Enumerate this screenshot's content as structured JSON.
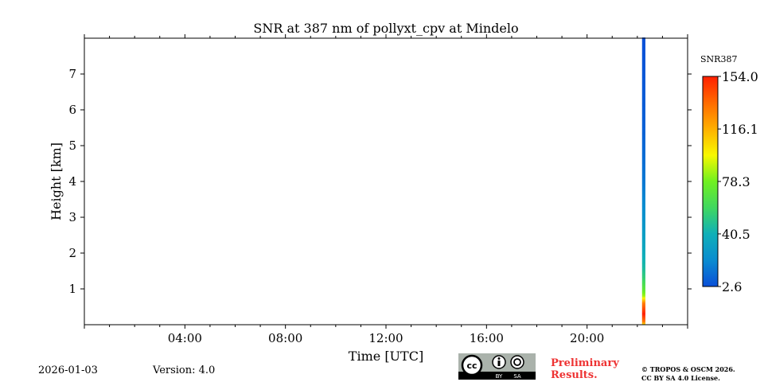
{
  "chart_data": {
    "type": "heatmap",
    "title": "SNR at 387 nm of pollyxt_cpv at Mindelo",
    "xlabel": "Time [UTC]",
    "ylabel": "Height [km]",
    "xlim_hours": [
      0,
      24
    ],
    "ylim_km": [
      0,
      8
    ],
    "xticks": [
      {
        "h": 4,
        "label": "04:00"
      },
      {
        "h": 8,
        "label": "08:00"
      },
      {
        "h": 12,
        "label": "12:00"
      },
      {
        "h": 16,
        "label": "16:00"
      },
      {
        "h": 20,
        "label": "20:00"
      }
    ],
    "yticks": [
      {
        "v": 1,
        "label": "1"
      },
      {
        "v": 2,
        "label": "2"
      },
      {
        "v": 3,
        "label": "3"
      },
      {
        "v": 4,
        "label": "4"
      },
      {
        "v": 5,
        "label": "5"
      },
      {
        "v": 6,
        "label": "6"
      },
      {
        "v": 7,
        "label": "7"
      }
    ],
    "colorbar": {
      "label": "SNR387",
      "range": [
        2.6,
        154.0
      ],
      "ticks": [
        {
          "v": 2.6,
          "label": "2.6"
        },
        {
          "v": 40.5,
          "label": "40.5"
        },
        {
          "v": 78.3,
          "label": "78.3"
        },
        {
          "v": 116.1,
          "label": "116.1"
        },
        {
          "v": 154.0,
          "label": "154.0"
        }
      ],
      "colors": [
        "#0a4fd8",
        "#0a8cd0",
        "#10b0b8",
        "#40d860",
        "#70f020",
        "#f8f800",
        "#ffb000",
        "#ff6a00",
        "#ff2000"
      ]
    },
    "profile": {
      "time_start_h": 22.19,
      "time_end_h": 22.32,
      "points": [
        {
          "h": 0.0,
          "v": 100
        },
        {
          "h": 0.08,
          "v": 130
        },
        {
          "h": 0.3,
          "v": 154
        },
        {
          "h": 0.6,
          "v": 130
        },
        {
          "h": 0.8,
          "v": 85
        },
        {
          "h": 1.0,
          "v": 70
        },
        {
          "h": 1.3,
          "v": 55
        },
        {
          "h": 1.6,
          "v": 45
        },
        {
          "h": 2.2,
          "v": 35
        },
        {
          "h": 3.0,
          "v": 25
        },
        {
          "h": 4.0,
          "v": 15
        },
        {
          "h": 5.5,
          "v": 8
        },
        {
          "h": 8.0,
          "v": 3
        }
      ]
    }
  },
  "footer": {
    "date": "2026-01-03",
    "version": "Version: 4.0",
    "preliminary": [
      "Preliminary",
      "Results."
    ],
    "copyright": [
      "© TROPOS & OSCM 2026.",
      "CC BY SA 4.0 License."
    ],
    "license_badge": [
      "cc",
      "BY",
      "SA"
    ]
  }
}
